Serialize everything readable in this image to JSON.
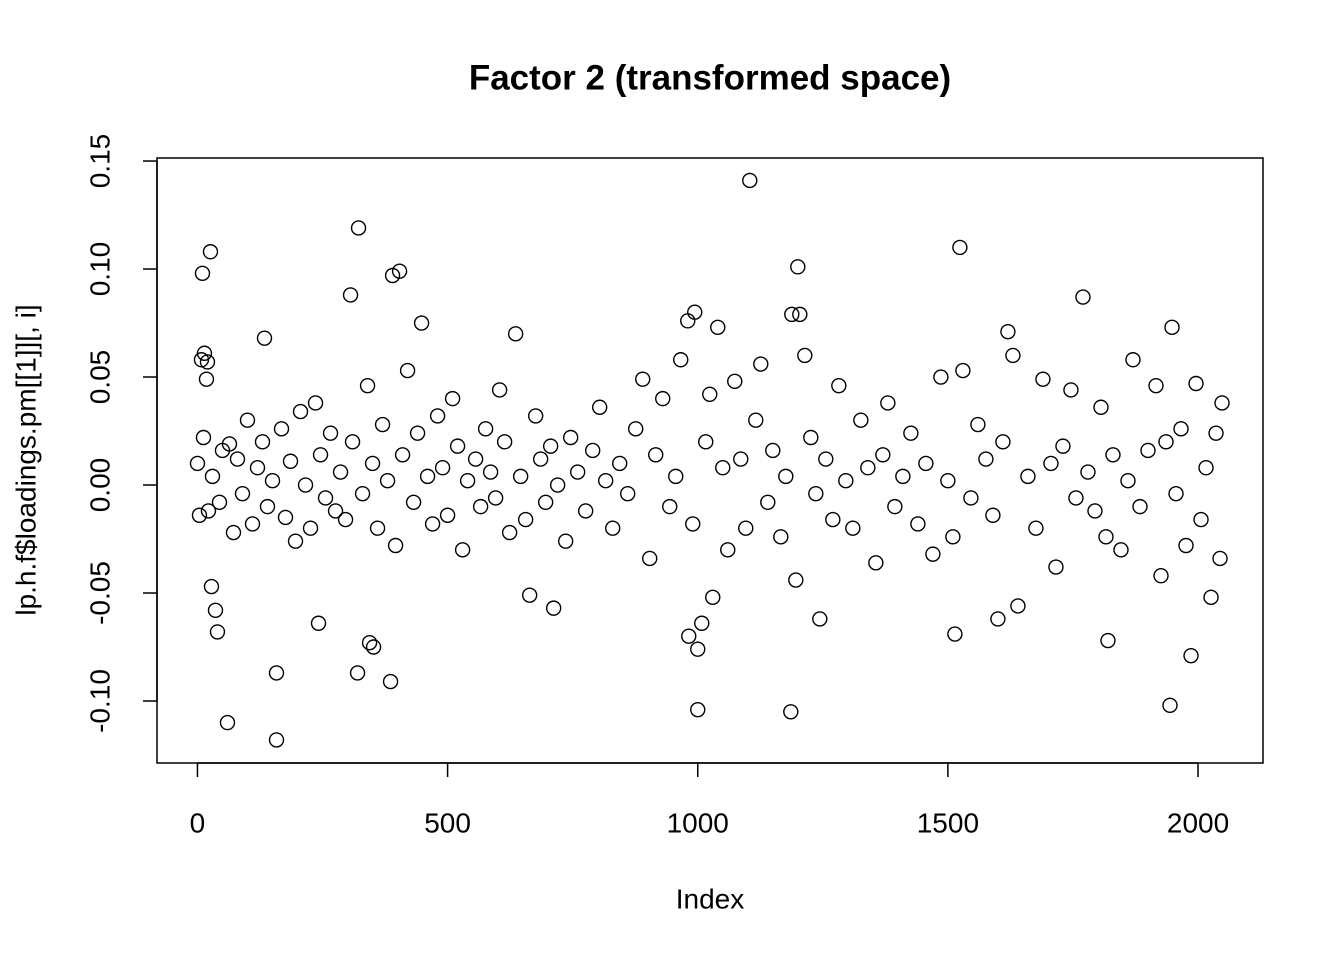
{
  "chart_data": {
    "type": "scatter",
    "title": "Factor 2 (transformed space)",
    "x_label": "Index",
    "y_label": "lp.h.f$loadings.pm[[1]][, i]",
    "xlim": [
      -80.88,
      2129.88
    ],
    "ylim": [
      -0.1287,
      0.1514
    ],
    "xticks": [
      0,
      500,
      1000,
      1500,
      2000
    ],
    "yticks": [
      {
        "value": -0.1,
        "label": "-0.10"
      },
      -0.05,
      {
        "value": 0,
        "label": "0.00"
      },
      0.05,
      {
        "value": 0.1,
        "label": "0.10"
      },
      0.15
    ],
    "color": "#000000",
    "series": [
      {
        "name": "loadings",
        "x": [
          10,
          26,
          8,
          14,
          20,
          18,
          60,
          40,
          36,
          28,
          158,
          158,
          134,
          306,
          322,
          390,
          404,
          448,
          320,
          386,
          344,
          352,
          636,
          1104,
          1000,
          1186,
          1200,
          1524,
          1770,
          1944,
          1948,
          1620,
          1986,
          980,
          994,
          982,
          1000,
          1008,
          1040,
          1188,
          1204,
          1820,
          1514,
          1600,
          1244,
          242,
          712,
          664,
          0,
          4,
          12,
          22,
          30,
          44,
          50,
          64,
          72,
          80,
          90,
          100,
          110,
          120,
          130,
          140,
          150,
          168,
          176,
          186,
          196,
          206,
          216,
          226,
          236,
          246,
          256,
          266,
          276,
          286,
          296,
          310,
          330,
          340,
          350,
          360,
          370,
          380,
          396,
          410,
          420,
          432,
          440,
          460,
          470,
          480,
          490,
          500,
          510,
          520,
          530,
          540,
          556,
          566,
          576,
          586,
          596,
          604,
          614,
          624,
          646,
          656,
          676,
          686,
          696,
          706,
          720,
          736,
          746,
          760,
          776,
          790,
          804,
          816,
          830,
          844,
          860,
          876,
          890,
          904,
          916,
          930,
          944,
          956,
          966,
          990,
          1016,
          1024,
          1030,
          1050,
          1060,
          1074,
          1086,
          1096,
          1116,
          1126,
          1140,
          1150,
          1166,
          1176,
          1196,
          1214,
          1226,
          1236,
          1256,
          1270,
          1282,
          1296,
          1310,
          1326,
          1340,
          1356,
          1370,
          1380,
          1394,
          1410,
          1426,
          1440,
          1456,
          1470,
          1486,
          1500,
          1510,
          1530,
          1546,
          1560,
          1576,
          1590,
          1610,
          1630,
          1640,
          1660,
          1676,
          1690,
          1706,
          1716,
          1730,
          1746,
          1756,
          1780,
          1794,
          1806,
          1816,
          1830,
          1846,
          1860,
          1870,
          1884,
          1900,
          1916,
          1926,
          1936,
          1956,
          1966,
          1976,
          1996,
          2006,
          2016,
          2026,
          2036,
          2044,
          2048
        ],
        "values": [
          0.098,
          0.108,
          0.058,
          0.061,
          0.057,
          0.049,
          -0.11,
          -0.068,
          -0.058,
          -0.047,
          -0.087,
          -0.118,
          0.068,
          0.088,
          0.119,
          0.097,
          0.099,
          0.075,
          -0.087,
          -0.091,
          -0.073,
          -0.075,
          0.07,
          0.141,
          -0.104,
          -0.105,
          0.101,
          0.11,
          0.087,
          -0.102,
          0.073,
          0.071,
          -0.079,
          0.076,
          0.08,
          -0.07,
          -0.076,
          -0.064,
          0.073,
          0.079,
          0.079,
          -0.072,
          -0.069,
          -0.062,
          -0.062,
          -0.064,
          -0.057,
          -0.051,
          0.01,
          -0.014,
          0.022,
          -0.012,
          0.004,
          -0.008,
          0.016,
          0.019,
          -0.022,
          0.012,
          -0.004,
          0.03,
          -0.018,
          0.008,
          0.02,
          -0.01,
          0.002,
          0.026,
          -0.015,
          0.011,
          -0.026,
          0.034,
          0.0,
          -0.02,
          0.038,
          0.014,
          -0.006,
          0.024,
          -0.012,
          0.006,
          -0.016,
          0.02,
          -0.004,
          0.046,
          0.01,
          -0.02,
          0.028,
          0.002,
          -0.028,
          0.014,
          0.053,
          -0.008,
          0.024,
          0.004,
          -0.018,
          0.032,
          0.008,
          -0.014,
          0.04,
          0.018,
          -0.03,
          0.002,
          0.012,
          -0.01,
          0.026,
          0.006,
          -0.006,
          0.044,
          0.02,
          -0.022,
          0.004,
          -0.016,
          0.032,
          0.012,
          -0.008,
          0.018,
          0.0,
          -0.026,
          0.022,
          0.006,
          -0.012,
          0.016,
          0.036,
          0.002,
          -0.02,
          0.01,
          -0.004,
          0.026,
          0.049,
          -0.034,
          0.014,
          0.04,
          -0.01,
          0.004,
          0.058,
          -0.018,
          0.02,
          0.042,
          -0.052,
          0.008,
          -0.03,
          0.048,
          0.012,
          -0.02,
          0.03,
          0.056,
          -0.008,
          0.016,
          -0.024,
          0.004,
          -0.044,
          0.06,
          0.022,
          -0.004,
          0.012,
          -0.016,
          0.046,
          0.002,
          -0.02,
          0.03,
          0.008,
          -0.036,
          0.014,
          0.038,
          -0.01,
          0.004,
          0.024,
          -0.018,
          0.01,
          -0.032,
          0.05,
          0.002,
          -0.024,
          0.053,
          -0.006,
          0.028,
          0.012,
          -0.014,
          0.02,
          0.06,
          -0.056,
          0.004,
          -0.02,
          0.049,
          0.01,
          -0.038,
          0.018,
          0.044,
          -0.006,
          0.006,
          -0.012,
          0.036,
          -0.024,
          0.014,
          -0.03,
          0.002,
          0.058,
          -0.01,
          0.016,
          0.046,
          -0.042,
          0.02,
          -0.004,
          0.026,
          -0.028,
          0.047,
          -0.016,
          0.008,
          -0.052,
          0.024,
          -0.034,
          0.038
        ]
      }
    ]
  }
}
